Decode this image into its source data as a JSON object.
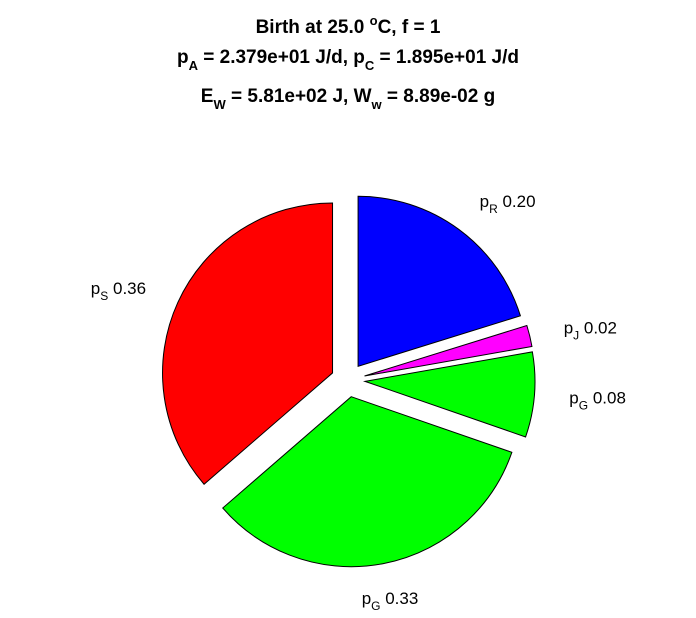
{
  "title": {
    "line1": {
      "pre": "Birth at 25.0 ",
      "sup": "o",
      "post": "C, f = 1"
    },
    "line2": {
      "a": "p",
      "a_sub": "A",
      "b": " = 2.379e+01 J/d, p",
      "b_sub": "C",
      "c": " = 1.895e+01 J/d"
    },
    "line3": {
      "a": "E",
      "a_sub": "W",
      "b": " = 5.81e+02 J, W",
      "b_sub": "w",
      "c": " = 8.89e-02 g"
    }
  },
  "chart_data": {
    "type": "pie",
    "start_angle_deg": 90,
    "direction": "clockwise",
    "slices": [
      {
        "name": "p",
        "sub": "R",
        "value": 0.2,
        "label": "0.20",
        "color": "#0000ff"
      },
      {
        "name": "p",
        "sub": "J",
        "value": 0.02,
        "label": "0.02",
        "color": "#ff00ff"
      },
      {
        "name": "p",
        "sub": "G",
        "value": 0.08,
        "label": "0.08",
        "color": "#00ff00"
      },
      {
        "name": "p",
        "sub": "G",
        "value": 0.33,
        "label": "0.33",
        "color": "#00ff00"
      },
      {
        "name": "p",
        "sub": "S",
        "value": 0.36,
        "label": "0.36",
        "color": "#ff0000"
      }
    ]
  }
}
